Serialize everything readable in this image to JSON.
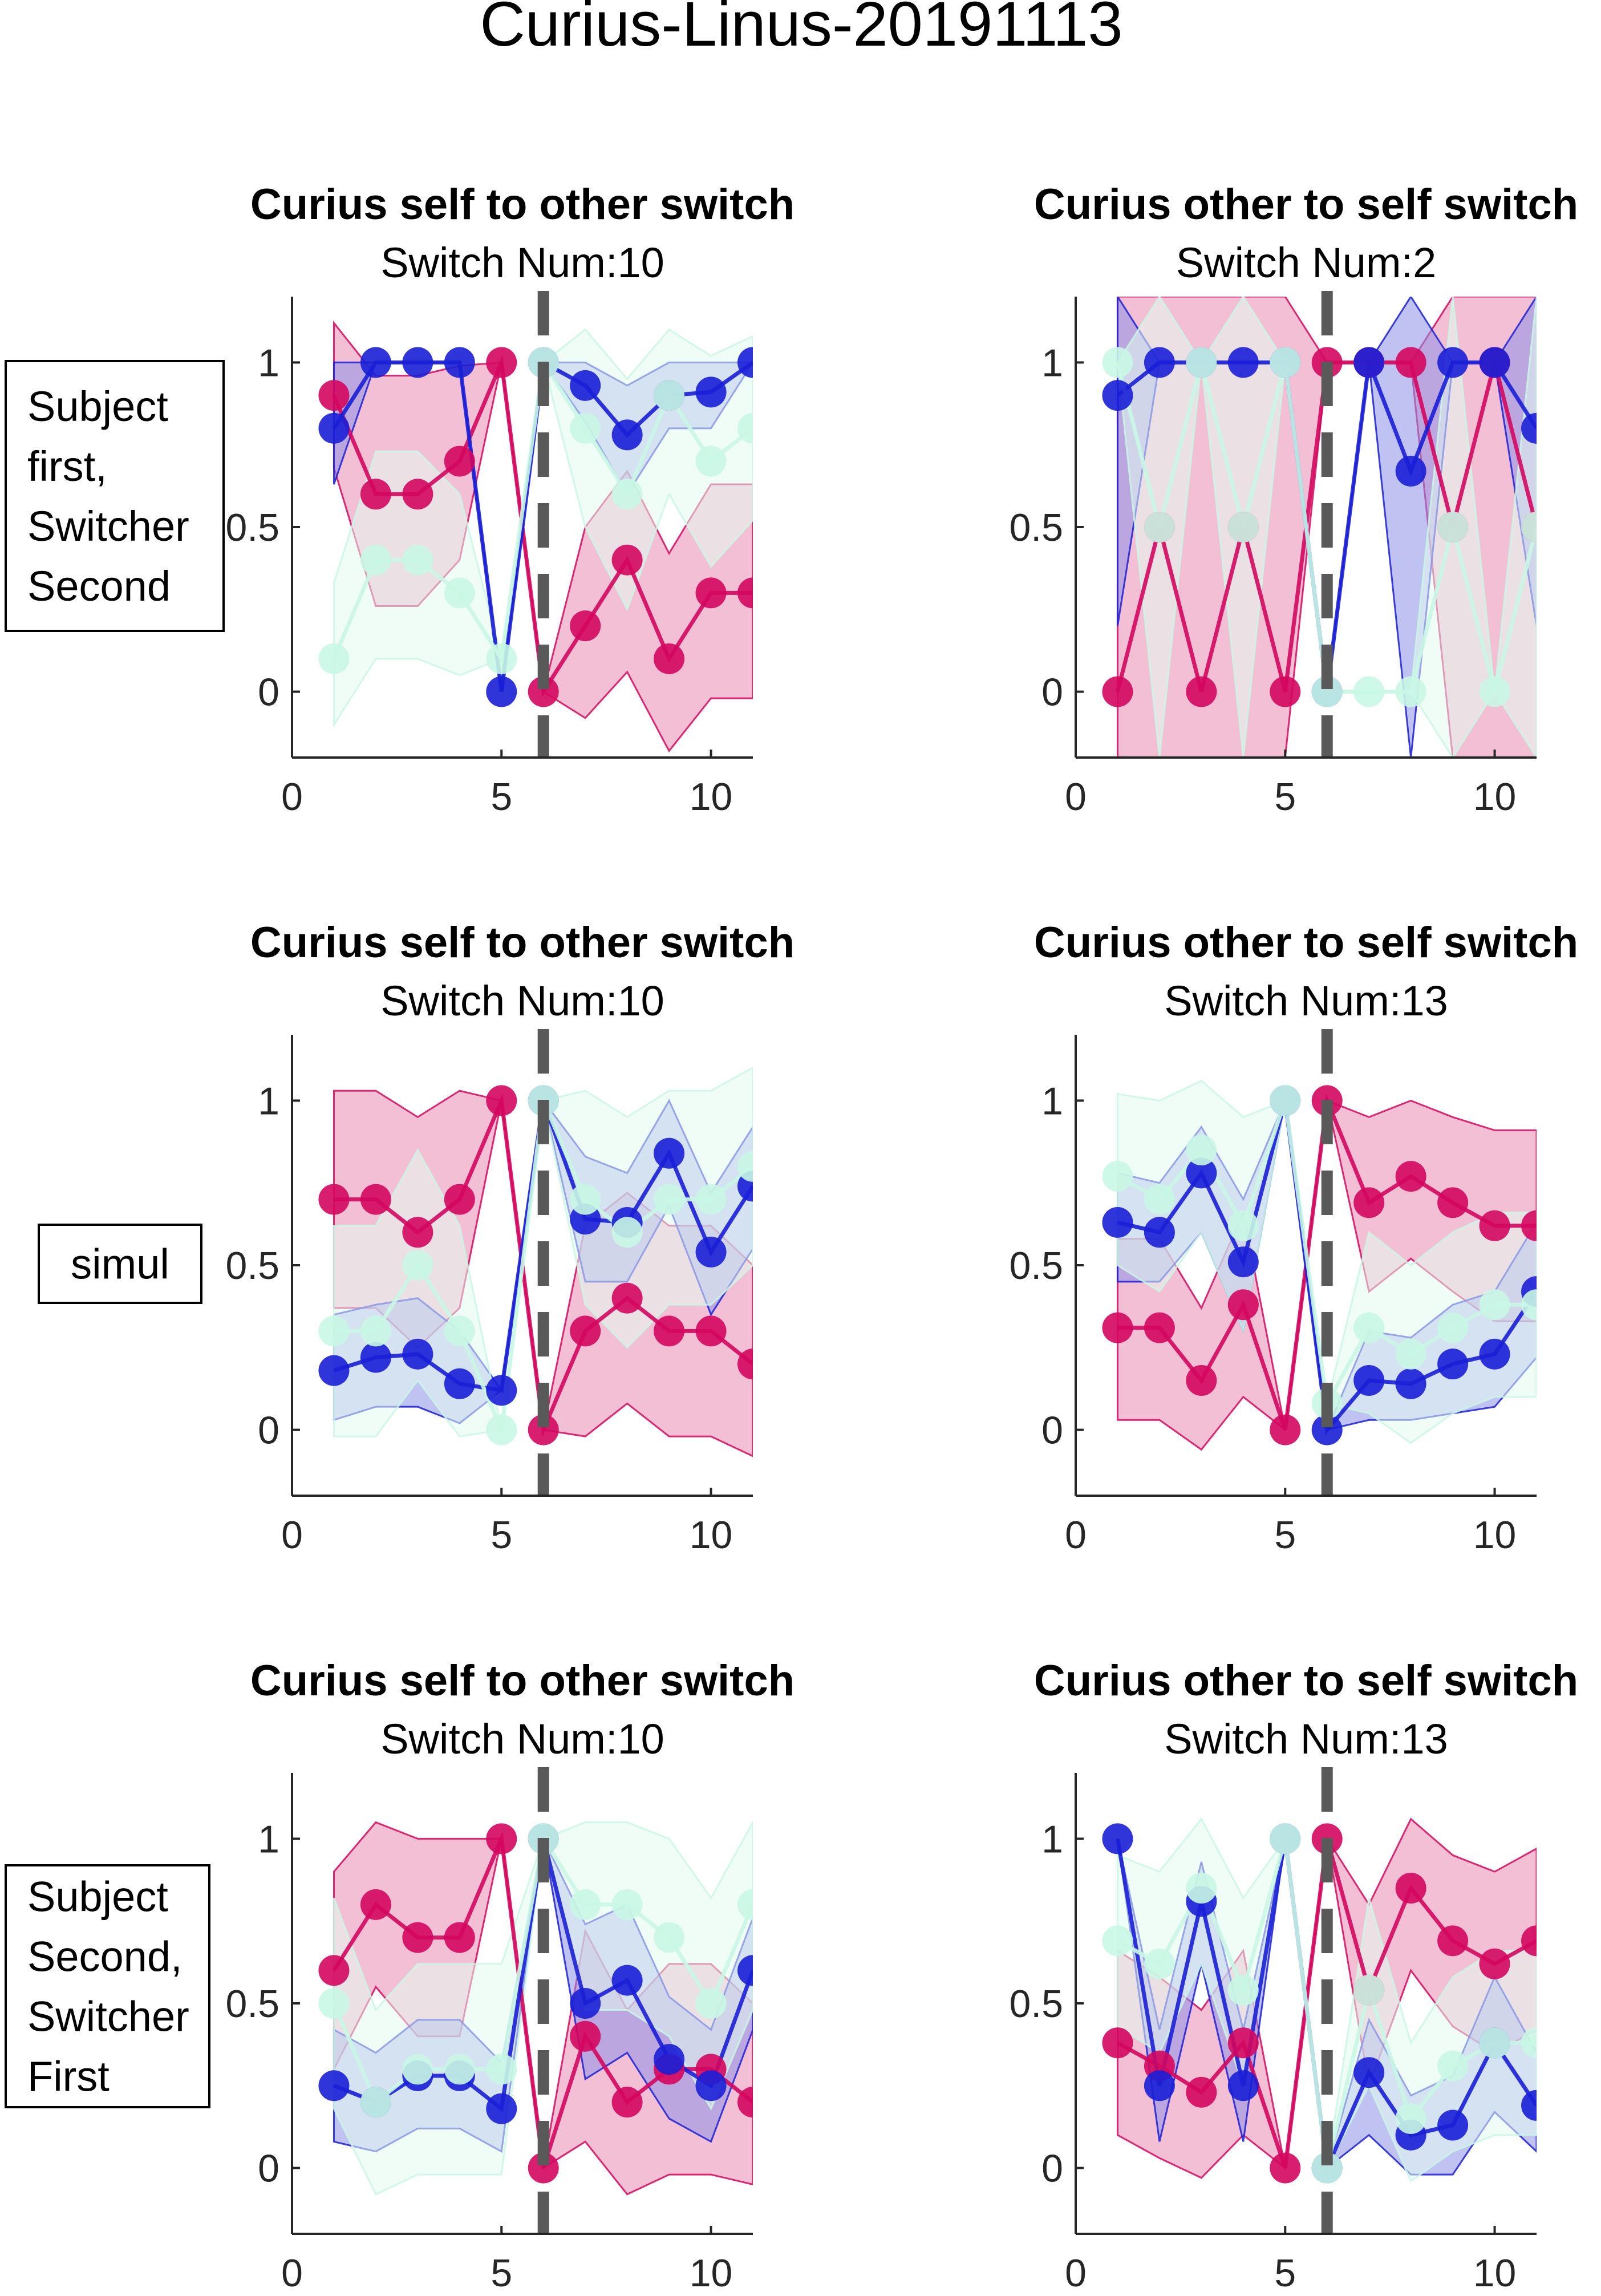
{
  "figure": {
    "title": "Curius-Linus-20191113",
    "row_labels": [
      [
        "Subject",
        "first,",
        "Switcher",
        "Second"
      ],
      [
        "simul"
      ],
      [
        "Subject",
        "Second,",
        "Switcher",
        "First"
      ]
    ]
  },
  "colors": {
    "magenta": "#d4075f",
    "magenta_fill": "#e98bb3",
    "blue": "#1a1fd6",
    "blue_fill": "#8d91e8",
    "mint": "#c9f7e4",
    "mint_fill": "#e3fbf1",
    "switch_line": "#595959"
  },
  "chart_data": [
    {
      "type": "line",
      "title": "Curius self to other switch",
      "subtitle": "Switch Num:10",
      "xlim": [
        0,
        11
      ],
      "ylim": [
        -0.2,
        1.2
      ],
      "xticks": [
        "0",
        "5",
        "10"
      ],
      "yticks": [
        "0",
        "0.5",
        "1"
      ],
      "switch_x": 6,
      "series": [
        {
          "color": "magenta",
          "x": [
            1,
            2,
            3,
            4,
            5,
            6,
            7,
            8,
            9,
            10,
            11
          ],
          "y": [
            0.9,
            0.6,
            0.6,
            0.7,
            1.0,
            0.0,
            0.2,
            0.4,
            0.1,
            0.3,
            0.3
          ],
          "upper": [
            1.12,
            0.96,
            0.96,
            0.99,
            1.0,
            0.0,
            0.5,
            0.67,
            0.42,
            0.63,
            0.63
          ],
          "lower": [
            0.68,
            0.26,
            0.26,
            0.4,
            1.0,
            0.0,
            -0.08,
            0.06,
            -0.18,
            -0.02,
            -0.02
          ]
        },
        {
          "color": "blue",
          "x": [
            1,
            2,
            3,
            4,
            5,
            6,
            7,
            8,
            9,
            10,
            11
          ],
          "y": [
            0.8,
            1.0,
            1.0,
            1.0,
            0.0,
            1.0,
            0.93,
            0.78,
            0.9,
            0.91,
            1.0
          ],
          "upper": [
            1.0,
            1.0,
            1.0,
            1.0,
            0.0,
            1.0,
            1.0,
            0.93,
            1.0,
            1.0,
            1.0
          ],
          "lower": [
            0.63,
            1.0,
            1.0,
            1.0,
            0.0,
            1.0,
            0.82,
            0.6,
            0.8,
            0.8,
            1.0
          ]
        },
        {
          "color": "mint",
          "x": [
            1,
            2,
            3,
            4,
            5,
            6,
            7,
            8,
            9,
            10,
            11
          ],
          "y": [
            0.1,
            0.4,
            0.4,
            0.3,
            0.1,
            1.0,
            0.8,
            0.6,
            0.9,
            0.7,
            0.8
          ],
          "upper": [
            0.33,
            0.73,
            0.73,
            0.6,
            0.1,
            1.0,
            1.1,
            0.95,
            1.1,
            1.02,
            1.08
          ],
          "lower": [
            -0.1,
            0.1,
            0.1,
            0.05,
            0.1,
            1.0,
            0.5,
            0.25,
            0.6,
            0.38,
            0.52
          ]
        }
      ]
    },
    {
      "type": "line",
      "title": "Curius other to self switch",
      "subtitle": "Switch Num:2",
      "xlim": [
        0,
        11
      ],
      "ylim": [
        -0.2,
        1.2
      ],
      "xticks": [
        "0",
        "5",
        "10"
      ],
      "yticks": [
        "0",
        "0.5",
        "1"
      ],
      "switch_x": 6,
      "series": [
        {
          "color": "magenta",
          "x": [
            1,
            2,
            3,
            4,
            5,
            6,
            7,
            8,
            9,
            10,
            11
          ],
          "y": [
            0.0,
            0.5,
            0.0,
            0.5,
            0.0,
            1.0,
            1.0,
            1.0,
            0.5,
            1.0,
            0.5
          ],
          "upper": [
            1.2,
            1.2,
            1.2,
            1.2,
            1.2,
            1.0,
            1.0,
            1.0,
            1.2,
            1.2,
            1.2
          ],
          "lower": [
            -0.2,
            -0.2,
            -0.2,
            -0.2,
            -0.2,
            1.0,
            1.0,
            1.0,
            -0.2,
            -0.2,
            -0.2
          ]
        },
        {
          "color": "blue",
          "x": [
            1,
            2,
            3,
            4,
            5,
            6,
            7,
            8,
            9,
            10,
            11
          ],
          "y": [
            0.9,
            1.0,
            1.0,
            1.0,
            1.0,
            0.0,
            1.0,
            0.67,
            1.0,
            1.0,
            0.8
          ],
          "upper": [
            1.2,
            1.0,
            1.0,
            1.0,
            1.0,
            0.0,
            1.0,
            1.2,
            1.0,
            1.0,
            1.2
          ],
          "lower": [
            0.2,
            1.0,
            1.0,
            1.0,
            1.0,
            0.0,
            1.0,
            -0.2,
            1.0,
            1.0,
            0.2
          ]
        },
        {
          "color": "mint",
          "x": [
            1,
            2,
            3,
            4,
            5,
            6,
            7,
            8,
            9,
            10,
            11
          ],
          "y": [
            1.0,
            0.5,
            1.0,
            0.5,
            1.0,
            0.0,
            0.0,
            0.0,
            0.5,
            0.0,
            0.5
          ],
          "upper": [
            1.0,
            1.2,
            1.0,
            1.2,
            1.0,
            0.0,
            0.0,
            0.0,
            1.2,
            0.0,
            1.2
          ],
          "lower": [
            1.0,
            -0.2,
            1.0,
            -0.2,
            1.0,
            0.0,
            0.0,
            0.0,
            -0.2,
            0.0,
            -0.2
          ]
        }
      ]
    },
    {
      "type": "line",
      "title": "Curius self to other switch",
      "subtitle": "Switch Num:10",
      "xlim": [
        0,
        11
      ],
      "ylim": [
        -0.2,
        1.2
      ],
      "xticks": [
        "0",
        "5",
        "10"
      ],
      "yticks": [
        "0",
        "0.5",
        "1"
      ],
      "switch_x": 6,
      "series": [
        {
          "color": "magenta",
          "x": [
            1,
            2,
            3,
            4,
            5,
            6,
            7,
            8,
            9,
            10,
            11
          ],
          "y": [
            0.7,
            0.7,
            0.6,
            0.7,
            1.0,
            0.0,
            0.3,
            0.4,
            0.3,
            0.3,
            0.2
          ],
          "upper": [
            1.03,
            1.03,
            0.95,
            1.03,
            1.0,
            0.0,
            0.62,
            0.72,
            0.62,
            0.62,
            0.5
          ],
          "lower": [
            0.37,
            0.37,
            0.25,
            0.37,
            1.0,
            0.0,
            -0.02,
            0.08,
            -0.02,
            -0.02,
            -0.08
          ]
        },
        {
          "color": "blue",
          "x": [
            1,
            2,
            3,
            4,
            5,
            6,
            7,
            8,
            9,
            10,
            11
          ],
          "y": [
            0.18,
            0.22,
            0.23,
            0.14,
            0.12,
            1.0,
            0.64,
            0.63,
            0.84,
            0.54,
            0.74
          ],
          "upper": [
            0.35,
            0.38,
            0.4,
            0.3,
            0.12,
            1.0,
            0.83,
            0.78,
            1.0,
            0.72,
            0.92
          ],
          "lower": [
            0.03,
            0.07,
            0.07,
            0.02,
            0.12,
            1.0,
            0.45,
            0.45,
            0.68,
            0.35,
            0.55
          ]
        },
        {
          "color": "mint",
          "x": [
            1,
            2,
            3,
            4,
            5,
            6,
            7,
            8,
            9,
            10,
            11
          ],
          "y": [
            0.3,
            0.3,
            0.5,
            0.3,
            0.0,
            1.0,
            0.7,
            0.6,
            0.7,
            0.7,
            0.8
          ],
          "upper": [
            0.62,
            0.62,
            0.85,
            0.62,
            0.0,
            1.0,
            1.03,
            0.95,
            1.03,
            1.03,
            1.1
          ],
          "lower": [
            -0.02,
            -0.02,
            0.15,
            -0.02,
            0.0,
            1.0,
            0.38,
            0.25,
            0.38,
            0.38,
            0.5
          ]
        }
      ]
    },
    {
      "type": "line",
      "title": "Curius other to self switch",
      "subtitle": "Switch Num:13",
      "xlim": [
        0,
        11
      ],
      "ylim": [
        -0.2,
        1.2
      ],
      "xticks": [
        "0",
        "5",
        "10"
      ],
      "yticks": [
        "0",
        "0.5",
        "1"
      ],
      "switch_x": 6,
      "series": [
        {
          "color": "magenta",
          "x": [
            1,
            2,
            3,
            4,
            5,
            6,
            7,
            8,
            9,
            10,
            11
          ],
          "y": [
            0.31,
            0.31,
            0.15,
            0.38,
            0.0,
            1.0,
            0.69,
            0.77,
            0.69,
            0.62,
            0.62
          ],
          "upper": [
            0.58,
            0.58,
            0.37,
            0.66,
            0.0,
            1.0,
            0.95,
            1.0,
            0.95,
            0.91,
            0.91
          ],
          "lower": [
            0.03,
            0.03,
            -0.06,
            0.1,
            0.0,
            1.0,
            0.42,
            0.52,
            0.42,
            0.33,
            0.33
          ]
        },
        {
          "color": "blue",
          "x": [
            1,
            2,
            3,
            4,
            5,
            6,
            7,
            8,
            9,
            10,
            11
          ],
          "y": [
            0.63,
            0.6,
            0.78,
            0.51,
            1.0,
            0.0,
            0.15,
            0.14,
            0.2,
            0.23,
            0.42
          ],
          "upper": [
            0.78,
            0.75,
            0.92,
            0.7,
            1.0,
            0.0,
            0.3,
            0.28,
            0.38,
            0.42,
            0.63
          ],
          "lower": [
            0.45,
            0.45,
            0.6,
            0.3,
            1.0,
            0.0,
            0.03,
            0.03,
            0.05,
            0.07,
            0.22
          ]
        },
        {
          "color": "mint",
          "x": [
            1,
            2,
            3,
            4,
            5,
            6,
            7,
            8,
            9,
            10,
            11
          ],
          "y": [
            0.77,
            0.7,
            0.85,
            0.62,
            1.0,
            0.08,
            0.31,
            0.23,
            0.31,
            0.38,
            0.38
          ],
          "upper": [
            1.02,
            1.0,
            1.06,
            0.95,
            1.0,
            0.08,
            0.6,
            0.5,
            0.6,
            0.66,
            0.66
          ],
          "lower": [
            0.5,
            0.42,
            0.6,
            0.3,
            1.0,
            0.08,
            0.05,
            -0.04,
            0.05,
            0.1,
            0.1
          ]
        }
      ]
    },
    {
      "type": "line",
      "title": "Curius self to other switch",
      "subtitle": "Switch Num:10",
      "xlim": [
        0,
        11
      ],
      "ylim": [
        -0.2,
        1.2
      ],
      "xticks": [
        "0",
        "5",
        "10"
      ],
      "yticks": [
        "0",
        "0.5",
        "1"
      ],
      "switch_x": 6,
      "series": [
        {
          "color": "magenta",
          "x": [
            1,
            2,
            3,
            4,
            5,
            6,
            7,
            8,
            9,
            10,
            11
          ],
          "y": [
            0.6,
            0.8,
            0.7,
            0.7,
            1.0,
            0.0,
            0.4,
            0.2,
            0.3,
            0.3,
            0.2
          ],
          "upper": [
            0.9,
            1.05,
            1.0,
            1.0,
            1.0,
            0.0,
            0.72,
            0.48,
            0.62,
            0.62,
            0.5
          ],
          "lower": [
            0.3,
            0.55,
            0.4,
            0.4,
            1.0,
            0.0,
            0.08,
            -0.08,
            -0.02,
            -0.02,
            -0.05
          ]
        },
        {
          "color": "blue",
          "x": [
            1,
            2,
            3,
            4,
            5,
            6,
            7,
            8,
            9,
            10,
            11
          ],
          "y": [
            0.25,
            0.2,
            0.28,
            0.28,
            0.18,
            1.0,
            0.5,
            0.57,
            0.33,
            0.25,
            0.6
          ],
          "upper": [
            0.42,
            0.35,
            0.45,
            0.45,
            0.32,
            1.0,
            0.74,
            0.8,
            0.52,
            0.42,
            0.76
          ],
          "lower": [
            0.08,
            0.05,
            0.12,
            0.12,
            0.05,
            1.0,
            0.27,
            0.35,
            0.15,
            0.08,
            0.42
          ]
        },
        {
          "color": "mint",
          "x": [
            1,
            2,
            3,
            4,
            5,
            6,
            7,
            8,
            9,
            10,
            11
          ],
          "y": [
            0.5,
            0.2,
            0.3,
            0.3,
            0.3,
            1.0,
            0.8,
            0.8,
            0.7,
            0.5,
            0.8
          ],
          "upper": [
            0.82,
            0.48,
            0.62,
            0.62,
            0.62,
            1.0,
            1.05,
            1.05,
            1.0,
            0.82,
            1.05
          ],
          "lower": [
            0.18,
            -0.08,
            -0.02,
            -0.02,
            -0.02,
            1.0,
            0.48,
            0.48,
            0.4,
            0.18,
            0.48
          ]
        }
      ]
    },
    {
      "type": "line",
      "title": "Curius other to self switch",
      "subtitle": "Switch Num:13",
      "xlim": [
        0,
        11
      ],
      "ylim": [
        -0.2,
        1.2
      ],
      "xticks": [
        "0",
        "5",
        "10"
      ],
      "yticks": [
        "0",
        "0.5",
        "1"
      ],
      "switch_x": 6,
      "series": [
        {
          "color": "magenta",
          "x": [
            1,
            2,
            3,
            4,
            5,
            6,
            7,
            8,
            9,
            10,
            11
          ],
          "y": [
            0.38,
            0.31,
            0.23,
            0.38,
            0.0,
            1.0,
            0.54,
            0.85,
            0.69,
            0.62,
            0.69
          ],
          "upper": [
            0.66,
            0.58,
            0.48,
            0.66,
            0.0,
            1.0,
            0.8,
            1.06,
            0.95,
            0.9,
            0.97
          ],
          "lower": [
            0.1,
            0.03,
            -0.03,
            0.1,
            0.0,
            1.0,
            0.25,
            0.6,
            0.43,
            0.35,
            0.42
          ]
        },
        {
          "color": "blue",
          "x": [
            1,
            2,
            3,
            4,
            5,
            6,
            7,
            8,
            9,
            10,
            11
          ],
          "y": [
            1.0,
            0.25,
            0.81,
            0.25,
            1.0,
            0.0,
            0.29,
            0.1,
            0.13,
            0.38,
            0.19
          ],
          "upper": [
            1.0,
            0.42,
            0.93,
            0.42,
            1.0,
            0.0,
            0.45,
            0.22,
            0.28,
            0.58,
            0.35
          ],
          "lower": [
            1.0,
            0.08,
            0.62,
            0.08,
            1.0,
            0.0,
            0.1,
            -0.02,
            -0.02,
            0.17,
            0.05
          ]
        },
        {
          "color": "mint",
          "x": [
            1,
            2,
            3,
            4,
            5,
            6,
            7,
            8,
            9,
            10,
            11
          ],
          "y": [
            0.69,
            0.62,
            0.85,
            0.54,
            1.0,
            0.0,
            0.54,
            0.15,
            0.31,
            0.38,
            0.38
          ],
          "upper": [
            0.95,
            0.9,
            1.06,
            0.82,
            1.0,
            0.0,
            0.82,
            0.38,
            0.58,
            0.66,
            0.66
          ],
          "lower": [
            0.43,
            0.35,
            0.62,
            0.25,
            1.0,
            0.0,
            0.25,
            -0.04,
            0.05,
            0.1,
            0.1
          ]
        }
      ]
    }
  ]
}
